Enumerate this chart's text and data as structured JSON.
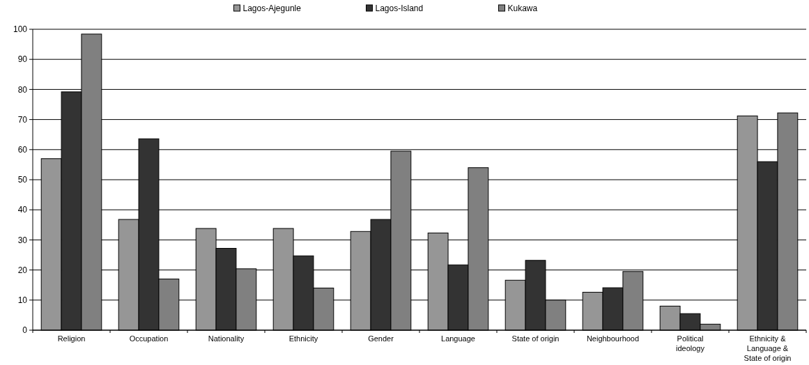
{
  "chart_data": {
    "type": "bar",
    "categories": [
      "Religion",
      "Occupation",
      "Nationality",
      "Ethnicity",
      "Gender",
      "Language",
      "State of origin",
      "Neighbourhood",
      "Political\nideology",
      "Ethnicity &\nLanguage &\nState of origin"
    ],
    "series": [
      {
        "name": "Lagos-Ajegunle",
        "color": "#969696",
        "values": [
          57,
          36.8,
          33.8,
          33.8,
          32.8,
          32.3,
          16.6,
          12.6,
          8,
          71.2
        ]
      },
      {
        "name": "Lagos-Island",
        "color": "#333333",
        "values": [
          79.2,
          63.6,
          27.2,
          24.7,
          36.8,
          21.7,
          23.2,
          14.1,
          5.5,
          56
        ]
      },
      {
        "name": "Kukawa",
        "color": "#808080",
        "values": [
          98.4,
          17,
          20.4,
          14,
          59.5,
          54,
          10,
          19.5,
          2,
          72.2
        ]
      }
    ],
    "ylim": [
      0,
      100
    ],
    "yticks": [
      0,
      10,
      20,
      30,
      40,
      50,
      60,
      70,
      80,
      90,
      100
    ],
    "grid": "y",
    "legend": "top"
  }
}
